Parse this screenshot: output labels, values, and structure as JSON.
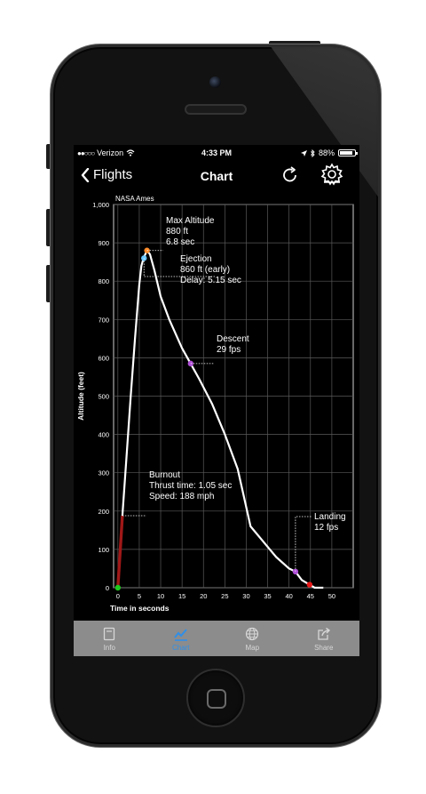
{
  "status": {
    "carrier": "Verizon",
    "time": "4:33 PM",
    "battery": "88%",
    "battery_level": 0.88
  },
  "nav": {
    "back_label": "Flights",
    "title": "Chart",
    "icons": [
      "chevron-left-icon",
      "refresh-icon",
      "gear-icon"
    ]
  },
  "chart_data": {
    "type": "line",
    "title": "NASA Ames",
    "xlabel": "Time in seconds",
    "ylabel": "Altitude (feet)",
    "xlim": [
      -1,
      55
    ],
    "ylim": [
      0,
      1000
    ],
    "xticks": [
      "0",
      "5",
      "10",
      "15",
      "20",
      "25",
      "30",
      "35",
      "40",
      "45",
      "50"
    ],
    "yticks": [
      "0",
      "100",
      "200",
      "300",
      "400",
      "500",
      "600",
      "700",
      "800",
      "900",
      "1,000"
    ],
    "grid": true,
    "series": [
      {
        "color": "#ffffff",
        "x": [
          0,
          1.05,
          2,
          3,
          4,
          5,
          5.5,
          6,
          6.8,
          7.5,
          8.5,
          10,
          12,
          15,
          17,
          19,
          22,
          25,
          28,
          31,
          34,
          37,
          40,
          41.5,
          43,
          44.8,
          46,
          48
        ],
        "y": [
          0,
          188,
          340,
          500,
          650,
          790,
          840,
          860,
          880,
          870,
          830,
          760,
          700,
          625,
          585,
          545,
          480,
          400,
          310,
          160,
          120,
          80,
          50,
          42,
          20,
          8,
          0,
          0
        ]
      },
      {
        "color": "#a01818",
        "x": [
          0,
          1.05
        ],
        "y": [
          0,
          188
        ]
      }
    ],
    "markers": [
      {
        "name": "launch",
        "x": 0,
        "y": 0,
        "color": "#1ec81e"
      },
      {
        "name": "ejection",
        "x": 6.1,
        "y": 860,
        "color": "#6cc8ff"
      },
      {
        "name": "max-altitude",
        "x": 6.8,
        "y": 880,
        "color": "#ff8c2a"
      },
      {
        "name": "descent",
        "x": 17,
        "y": 585,
        "color": "#b04fd8"
      },
      {
        "name": "landing-speed",
        "x": 41.5,
        "y": 42,
        "color": "#b04fd8"
      },
      {
        "name": "landing",
        "x": 44.8,
        "y": 8,
        "color": "#e81818"
      }
    ],
    "annotations": [
      {
        "name": "max-altitude",
        "lines": [
          "Max Altitude",
          "880 ft",
          "6.8  sec"
        ],
        "anchor_x": 6.8,
        "anchor_y": 880
      },
      {
        "name": "ejection",
        "lines": [
          "Ejection",
          "860 ft (early)",
          "Delay:  5.15 sec"
        ],
        "anchor_x": 6.1,
        "anchor_y": 860
      },
      {
        "name": "descent",
        "lines": [
          "Descent",
          "29 fps"
        ],
        "anchor_x": 17,
        "anchor_y": 585
      },
      {
        "name": "burnout",
        "lines": [
          "Burnout",
          "Thrust time: 1.05 sec",
          "Speed: 188 mph"
        ],
        "anchor_x": 1.05,
        "anchor_y": 188
      },
      {
        "name": "landing",
        "lines": [
          "Landing",
          "12 fps"
        ],
        "anchor_x": 41.5,
        "anchor_y": 42
      }
    ]
  },
  "tabs": [
    {
      "label": "Info",
      "icon": "document-icon",
      "active": false
    },
    {
      "label": "Chart",
      "icon": "chart-icon",
      "active": true
    },
    {
      "label": "Map",
      "icon": "globe-icon",
      "active": false
    },
    {
      "label": "Share",
      "icon": "share-icon",
      "active": false
    }
  ]
}
